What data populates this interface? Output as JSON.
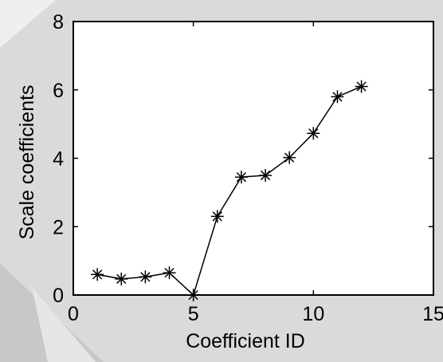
{
  "chart_data": {
    "type": "line",
    "marker": "asterisk",
    "xlabel": "Coefficient ID",
    "ylabel": "Scale coefficients",
    "xlim": [
      0,
      15
    ],
    "ylim": [
      0,
      8
    ],
    "xticks": [
      0,
      5,
      10,
      15
    ],
    "yticks": [
      0,
      2,
      4,
      6,
      8
    ],
    "grid": false,
    "series": [
      {
        "x": [
          1,
          2,
          3,
          4,
          5,
          6,
          7,
          8,
          9,
          10,
          11,
          12
        ],
        "values": [
          0.6,
          0.47,
          0.53,
          0.65,
          0.0,
          2.3,
          3.45,
          3.5,
          4.02,
          4.73,
          5.8,
          6.1
        ]
      }
    ],
    "colors": {
      "line": "#000000",
      "plot_background": "#ffffff",
      "page_background": "#dcdcdc"
    }
  }
}
